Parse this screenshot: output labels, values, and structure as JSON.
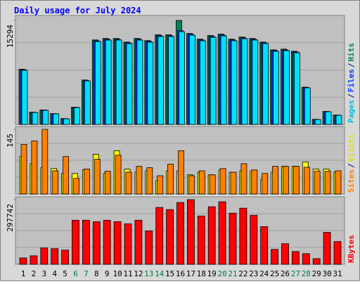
{
  "chart_data": {
    "type": "bar",
    "title": "Daily usage for July 2024",
    "categories": [
      "1",
      "2",
      "3",
      "4",
      "5",
      "6",
      "7",
      "8",
      "9",
      "10",
      "11",
      "12",
      "13",
      "14",
      "15",
      "16",
      "17",
      "18",
      "19",
      "20",
      "21",
      "22",
      "23",
      "24",
      "25",
      "26",
      "27",
      "28",
      "29",
      "30",
      "31"
    ],
    "category_colors": [
      "#000000",
      "#000000",
      "#000000",
      "#000000",
      "#000000",
      "#008040",
      "#008040",
      "#000000",
      "#000000",
      "#000000",
      "#000000",
      "#000000",
      "#008040",
      "#008040",
      "#000000",
      "#000000",
      "#000000",
      "#000000",
      "#000000",
      "#008040",
      "#008040",
      "#000000",
      "#000000",
      "#000000",
      "#000000",
      "#000000",
      "#008040",
      "#008040",
      "#000000",
      "#000000",
      "#000000"
    ],
    "legend_separator": "/",
    "panels": [
      {
        "ylim": [
          0,
          15294
        ],
        "yticks": [
          15294
        ],
        "series": [
          {
            "name": "Pages",
            "color": "#00e0ff",
            "label_color": "#00c0e0",
            "values": [
              7960,
              1760,
              2070,
              1550,
              830,
              2480,
              6400,
              12190,
              12400,
              12400,
              11880,
              12400,
              12090,
              12920,
              12920,
              13640,
              13120,
              12300,
              12810,
              13020,
              12300,
              12600,
              12400,
              11880,
              10750,
              10850,
              10540,
              5370,
              720,
              1860,
              1340
            ]
          },
          {
            "name": "Files",
            "color": "#0040ff",
            "label_color": "#0040ff",
            "values": [
              8040,
              1790,
              2100,
              1570,
              850,
              2510,
              6470,
              12300,
              12520,
              12520,
              12000,
              12520,
              12210,
              13050,
              13050,
              13780,
              13250,
              12420,
              12940,
              13150,
              12420,
              12730,
              12520,
              12000,
              10860,
              10960,
              10650,
              5420,
              740,
              1890,
              1360
            ]
          },
          {
            "name": "Hits",
            "color": "#00805c",
            "label_color": "#00805c",
            "values": [
              8120,
              1810,
              2130,
              1590,
              860,
              2540,
              6530,
              12420,
              12640,
              12640,
              12110,
              12640,
              12330,
              13180,
              13180,
              15294,
              13380,
              12540,
              13070,
              13280,
              12540,
              12850,
              12640,
              12110,
              10970,
              11070,
              10760,
              5480,
              750,
              1910,
              1380
            ]
          }
        ]
      },
      {
        "ylim": [
          0,
          145
        ],
        "yticks": [
          145
        ],
        "series": [
          {
            "name": "Sites",
            "color": "#ff8000",
            "label_color": "#ff8000",
            "values": [
              111,
              119,
              145,
              52,
              84,
              35,
              56,
              78,
              51,
              87,
              49,
              62,
              59,
              41,
              67,
              97,
              41,
              52,
              43,
              57,
              49,
              68,
              54,
              46,
              62,
              62,
              62,
              60,
              51,
              51,
              52
            ]
          },
          {
            "name": "Visits",
            "color": "#ffff00",
            "label_color": "#e0e000",
            "values": [
              84,
              68,
              59,
              57,
              46,
              46,
              54,
              89,
              46,
              97,
              56,
              49,
              52,
              30,
              52,
              52,
              43,
              49,
              43,
              54,
              49,
              52,
              52,
              33,
              49,
              62,
              62,
              72,
              56,
              56,
              49
            ]
          }
        ]
      },
      {
        "ylim": [
          0,
          297742
        ],
        "yticks": [
          297742
        ],
        "series": [
          {
            "name": "KBytes",
            "color": "#ff0000",
            "label_color": "#ff0000",
            "values": [
              29450,
              39260,
              75260,
              71980,
              65440,
              202860,
              202860,
              196320,
              202860,
              196320,
              186500,
              202860,
              153780,
              261720,
              251900,
              284660,
              297742,
              222500,
              265000,
              287900,
              235600,
              258500,
              225800,
              173400,
              68700,
              94900,
              58900,
              49100,
              26200,
              147200,
              104700
            ]
          }
        ]
      }
    ]
  }
}
